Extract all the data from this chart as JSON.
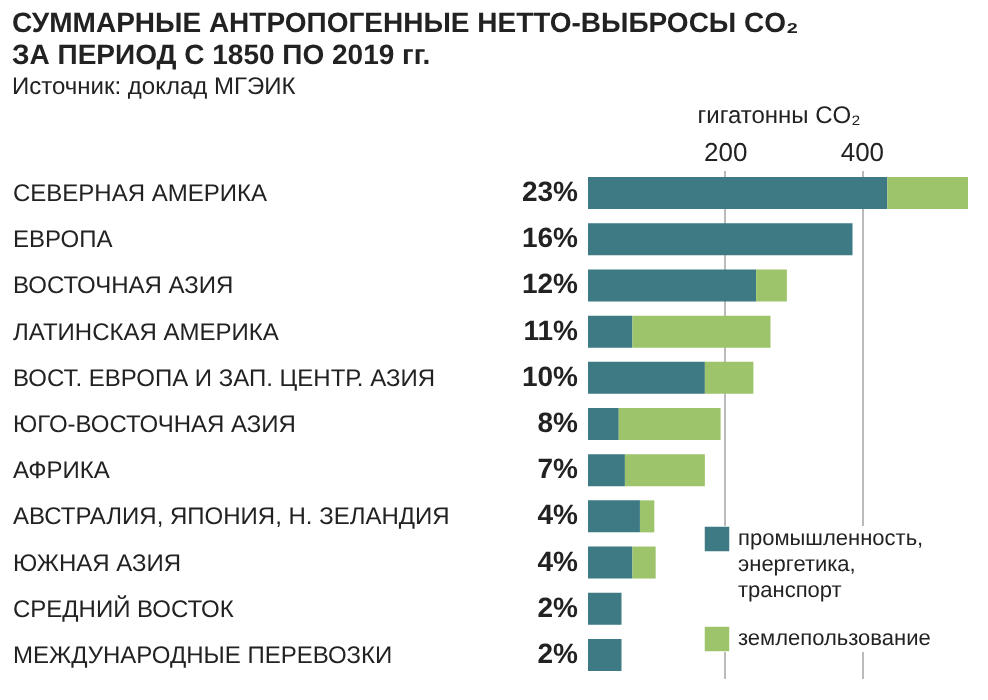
{
  "chart_data": {
    "type": "bar",
    "orientation": "horizontal",
    "stacked": true,
    "title": "СУММАРНЫЕ АНТРОПОГЕННЫЕ НЕТТО-ВЫБРОСЫ CO₂ ЗА ПЕРИОД С 1850 ПО 2019 гг.",
    "subtitle": "Источник: доклад МГЭИК",
    "xlabel": "гигатонны CO₂",
    "categories": [
      "СЕВЕРНАЯ АМЕРИКА",
      "ЕВРОПА",
      "ВОСТОЧНАЯ АЗИЯ",
      "ЛАТИНСКАЯ АМЕРИКА",
      "ВОСТ. ЕВРОПА И ЗАП. ЦЕНТР. АЗИЯ",
      "ЮГО-ВОСТОЧНАЯ АЗИЯ",
      "АФРИКА",
      "АВСТРАЛИЯ, ЯПОНИЯ, Н. ЗЕЛАНДИЯ",
      "ЮЖНАЯ АЗИЯ",
      "СРЕДНИЙ ВОСТОК",
      "МЕЖДУНАРОДНЫЕ ПЕРЕВОЗКИ"
    ],
    "series": [
      {
        "name": "промышленность, энергетика, транспорт",
        "color": "#3d7a84",
        "values": [
          438,
          387,
          246,
          65,
          171,
          45,
          54,
          76,
          65,
          49,
          49
        ]
      },
      {
        "name": "землепользование",
        "color": "#9dc46a",
        "values": [
          118,
          0,
          45,
          202,
          71,
          149,
          117,
          21,
          34,
          0,
          0
        ]
      }
    ],
    "annotations": [
      "23%",
      "16%",
      "12%",
      "11%",
      "10%",
      "8%",
      "7%",
      "4%",
      "4%",
      "2%",
      "2%"
    ],
    "xlim": [
      0,
      556
    ],
    "xticks": [
      200,
      400
    ],
    "grid": "x",
    "legend": "bottom right"
  }
}
